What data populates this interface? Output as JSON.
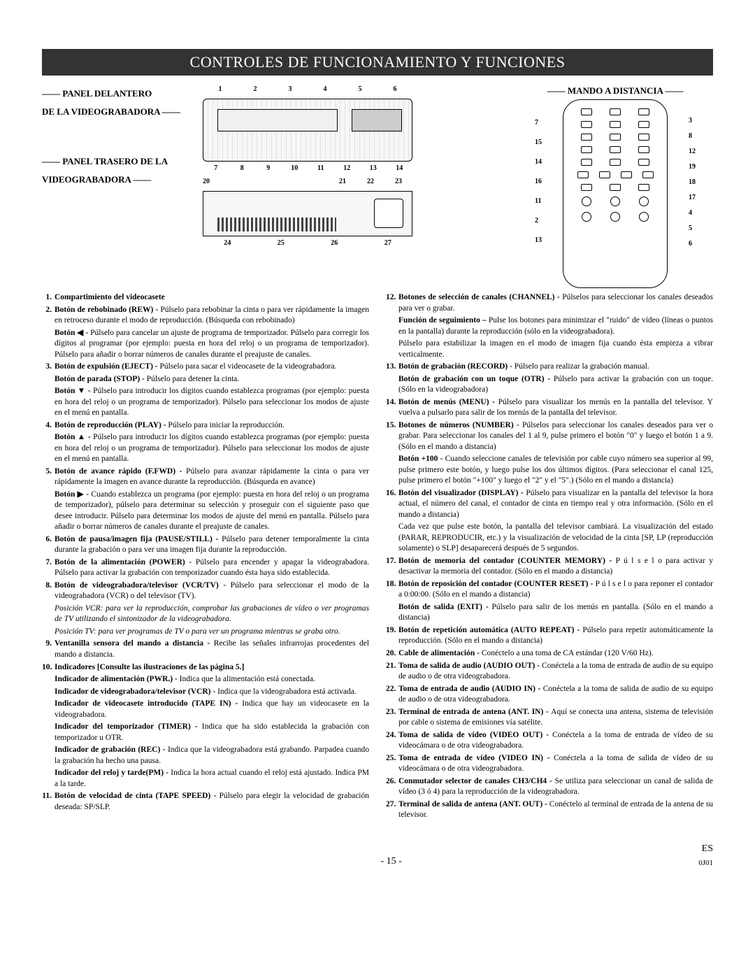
{
  "title_bar": "CONTROLES DE FUNCIONAMIENTO Y FUNCIONES",
  "headings": {
    "front_panel_1": "—— PANEL DELANTERO",
    "front_panel_2": "DE LA VIDEOGRABADORA ——",
    "rear_panel_1": "—— PANEL TRASERO DE LA",
    "rear_panel_2": "VIDEOGRABADORA ——",
    "remote": "MANDO A DISTANCIA"
  },
  "diagram_labels": {
    "front_top": [
      "1",
      "2",
      "3",
      "4",
      "5",
      "6"
    ],
    "front_bottom": [
      "7",
      "8",
      "9",
      "10",
      "11",
      "12",
      "13",
      "14"
    ],
    "rear_top_left": "20",
    "rear_top_right": [
      "21",
      "22",
      "23"
    ],
    "rear_bottom": [
      "24",
      "25",
      "26",
      "27"
    ],
    "remote_left": [
      "7",
      "15",
      "14",
      "16",
      "11",
      "2",
      "13"
    ],
    "remote_right": [
      "3",
      "8",
      "12",
      "19",
      "18",
      "17",
      "4",
      "5",
      "6"
    ]
  },
  "list_left": [
    {
      "n": "1.",
      "lead": "Compartimiento del videocasete",
      "body": ""
    },
    {
      "n": "2.",
      "lead": "Botón de rebobinado (REW) - ",
      "body": "Púlselo para rebobinar la cinta o para ver rápidamente la imagen en retroceso durante el modo de reproducción. (Búsqueda con rebobinado)",
      "extra": [
        {
          "lead": "Botón ◀ - ",
          "body": "Púlselo para cancelar un ajuste de programa de temporizador. Púlselo para corregir los dígitos al programar (por ejemplo: puesta en hora del reloj o un programa de temporizador). Púlselo para añadir o borrar números de canales durante el preajuste de canales."
        }
      ]
    },
    {
      "n": "3.",
      "lead": "Botón de expulsión (EJECT) - ",
      "body": "Púlselo para sacar el videocasete de la videograbadora.",
      "extra": [
        {
          "lead": "Botón de parada (STOP) - ",
          "body": "Púlselo para detener la cinta."
        },
        {
          "lead": "Botón ▼ - ",
          "body": "Púlselo para introducir los dígitos cuando establezca programas (por ejemplo: puesta en hora del reloj o un programa de temporizador). Púlselo para seleccionar los modos de ajuste en el menú en pantalla."
        }
      ]
    },
    {
      "n": "4.",
      "lead": "Botón de reproducción (PLAY) - ",
      "body": "Púlselo para iniciar la reproducción.",
      "extra": [
        {
          "lead": "Botón ▲ - ",
          "body": "Púlselo para introducir los dígitos cuando establezca programas (por ejemplo: puesta en hora del reloj o un programa de temporizador). Púlselo para seleccionar los modos de ajuste en el menú en pantalla."
        }
      ]
    },
    {
      "n": "5.",
      "lead": "Botón de avance rápido (F.FWD) - ",
      "body": "Púlselo para avanzar rápidamente la cinta o para ver rápidamente la imagen en avance durante la reproducción. (Búsqueda en avance)",
      "extra": [
        {
          "lead": "Botón ▶ - ",
          "body": "Cuando establezca un programa (por ejemplo: puesta en hora del reloj o un programa de temporizador), púlselo para determinar su selección y proseguir con el siguiente paso que desee introducir. Púlselo para determinar los modos de ajuste del menú en pantalla. Púlselo para añadir o borrar números de canales durante el preajuste de canales."
        }
      ]
    },
    {
      "n": "6.",
      "lead": "Botón de pausa/imagen fija (PAUSE/STILL) - ",
      "body": "Púlselo para detener temporalmente la cinta durante la grabación o para ver una imagen fija durante la reproducción."
    },
    {
      "n": "7.",
      "lead": "Botón de la alimentación (POWER) - ",
      "body": "Púlselo para encender y apagar la videograbadora. Púlselo para activar la grabación con temporizador cuando ésta haya sido establecida."
    },
    {
      "n": "8.",
      "lead": "Botón de videograbadora/televisor (VCR/TV) - ",
      "body": "Púlselo para seleccionar el modo de la videograbadora (VCR) o del televisor (TV).",
      "extra": [
        {
          "ital": true,
          "body": "Posición VCR: para ver la reproducción, comprobar las grabaciones de vídeo o ver programas de TV utilizando el sintonizador de la videograbadora."
        },
        {
          "ital": true,
          "body": "Posición TV: para ver programas de TV o para ver un programa mientras se graba otro."
        }
      ]
    },
    {
      "n": "9.",
      "lead": "Ventanilla sensora del mando a distancia - ",
      "body": "Recibe las señales infrarrojas procedentes del mando a distancia."
    },
    {
      "n": "10.",
      "lead": "Indicadores [Consulte las ilustraciones de las página 5.]",
      "body": "",
      "extra": [
        {
          "lead": "Indicador de alimentación (PWR.) - ",
          "body": "Indica que la alimentación está conectada."
        },
        {
          "lead": "Indicador de videograbadora/televisor (VCR) - ",
          "body": "Indica que la videograbadora está activada."
        },
        {
          "lead": "Indicador de videocasete introducido (TAPE IN) - ",
          "body": "Indica que hay un videocasete en la videograbadora."
        },
        {
          "lead": "Indicador del temporizador (TIMER) - ",
          "body": "Indica que ha sido establecida la grabación con temporizador u OTR."
        },
        {
          "lead": "Indicador de grabación (REC) - ",
          "body": "Indica que la videograbadora está grabando. Parpadea cuando la grabación ha hecho una pausa."
        },
        {
          "lead": "Indicador del reloj y tarde(PM) - ",
          "body": "Indica la hora actual cuando el reloj está ajustado. Indica PM a la tarde."
        }
      ]
    },
    {
      "n": "11.",
      "lead": "Botón de velocidad de cinta (TAPE SPEED) - ",
      "body": "Púlselo para elegir la velocidad de grabación deseada: SP/SLP."
    }
  ],
  "list_right": [
    {
      "n": "12.",
      "lead": "Botones de selección de canales (CHANNEL) - ",
      "body": "Púlselos para seleccionar los canales deseados para ver o grabar.",
      "extra": [
        {
          "lead": "Función de seguimiento – ",
          "body": "Pulse los botones para minimizar el \"ruido\" de vídeo (líneas o puntos en la pantalla) durante la reproducción (sólo en la videograbadora)."
        },
        {
          "body": "Púlselo para estabilizar la imagen en el modo de imagen fija cuando ésta empieza a vibrar verticalmente."
        }
      ]
    },
    {
      "n": "13.",
      "lead": "Botón de grabación (RECORD) - ",
      "body": "Púlselo para realizar la grabación manual.",
      "extra": [
        {
          "lead": "Botón de grabación con un toque (OTR) - ",
          "body": "Púlselo para activar la grabación con un toque. (Sólo en la videograbadora)"
        }
      ]
    },
    {
      "n": "14.",
      "lead": "Botón de menús (MENU) - ",
      "body": "Púlselo para visualizar los menús en la pantalla del televisor. Y vuelva a pulsarlo para salir de los menús de la pantalla del televisor."
    },
    {
      "n": "15.",
      "lead": "Botones de números (NUMBER) - ",
      "body": "Púlselos para seleccionar los canales deseados para ver o grabar. Para seleccionar los canales del 1 al 9, pulse primero el botón \"0\" y luego el botón 1 a 9. (Sólo en el mando a distancia)",
      "extra": [
        {
          "lead": "Botón +100 - ",
          "body": "Cuando seleccione canales de televisión por cable cuyo número sea superior al 99, pulse primero este botón, y luego pulse los dos últimos dígitos. (Para seleccionar el canal 125, pulse primero el botón \"+100\" y luego el \"2\" y el \"5\".) (Sólo en el mando a distancia)"
        }
      ]
    },
    {
      "n": "16.",
      "lead": "Botón del visualizador (DISPLAY) - ",
      "body": "Púlselo para visualizar en la pantalla del televisor la hora actual, el número del canal, el contador de cinta en tiempo real y otra información. (Sólo en el mando a distancia)",
      "extra": [
        {
          "body": "Cada vez que pulse este botón, la pantalla del televisor cambiará. La visualización del estado (PARAR, REPRODUCIR, etc.) y la visualización de velocidad de la cinta [SP, LP (reproducción solamente) o SLP] desaparecerá después de 5 segundos."
        }
      ]
    },
    {
      "n": "17.",
      "lead": "Botón de memoria del contador (COUNTER MEMORY) - ",
      "body": "P ú l s e l o para activar y desactivar la memoria del contador. (Sólo en el mando a distancia)"
    },
    {
      "n": "18.",
      "lead": "Botón de reposición del contador (COUNTER RESET) - ",
      "body": "P ú l s e l o para reponer el contador a 0:00:00. (Sólo en el mando a distancia)",
      "extra": [
        {
          "lead": "Botón de salida (EXIT) - ",
          "body": "Púlselo para salir de los menús en pantalla. (Sólo en el mando a distancia)"
        }
      ]
    },
    {
      "n": "19.",
      "lead": "Botón de repetición automática (AUTO REPEAT) - ",
      "body": "Púlselo  para repetir automáticamente la reproducción. (Sólo en el mando a distancia)"
    },
    {
      "n": "20.",
      "lead": "Cable de alimentación - ",
      "body": "Conéctelo a una toma de CA estándar (120 V/60 Hz)."
    },
    {
      "n": "21.",
      "lead": "Toma de salida de audio (AUDIO OUT) - ",
      "body": "Conéctela a la toma de entrada de audio de su equipo de audio o de otra videograbadora."
    },
    {
      "n": "22.",
      "lead": "Toma de entrada de audio (AUDIO IN) - ",
      "body": "Conéctela a la toma de salida de audio de su equipo de audio o de otra videograbadora."
    },
    {
      "n": "23.",
      "lead": "Terminal de entrada de antena (ANT. IN) - ",
      "body": "Aquí se conecta una antena, sistema de televisión por cable o sistema de emisiones vía satélite."
    },
    {
      "n": "24.",
      "lead": "Toma de salida de vídeo (VIDEO OUT) - ",
      "body": "Conéctela a la toma de entrada de vídeo de su videocámara o de otra videograbadora."
    },
    {
      "n": "25.",
      "lead": "Toma de entrada de vídeo (VIDEO IN) - ",
      "body": "Conéctela a la toma de salida de vídeo de su videocámara o de otra videograbadora."
    },
    {
      "n": "26.",
      "lead": "Conmutador selector de canales CH3/CH4 - ",
      "body": "Se utiliza para seleccionar un canal de salida de vídeo (3 ó 4) para la reproducción de la videograbadora."
    },
    {
      "n": "27.",
      "lead": "Terminal de salida de antena (ANT. OUT) - ",
      "body": "Conéctelo al terminal de entrada de la antena de su televisor."
    }
  ],
  "footer": {
    "page": "- 15 -",
    "lang": "ES",
    "code": "0J01"
  }
}
